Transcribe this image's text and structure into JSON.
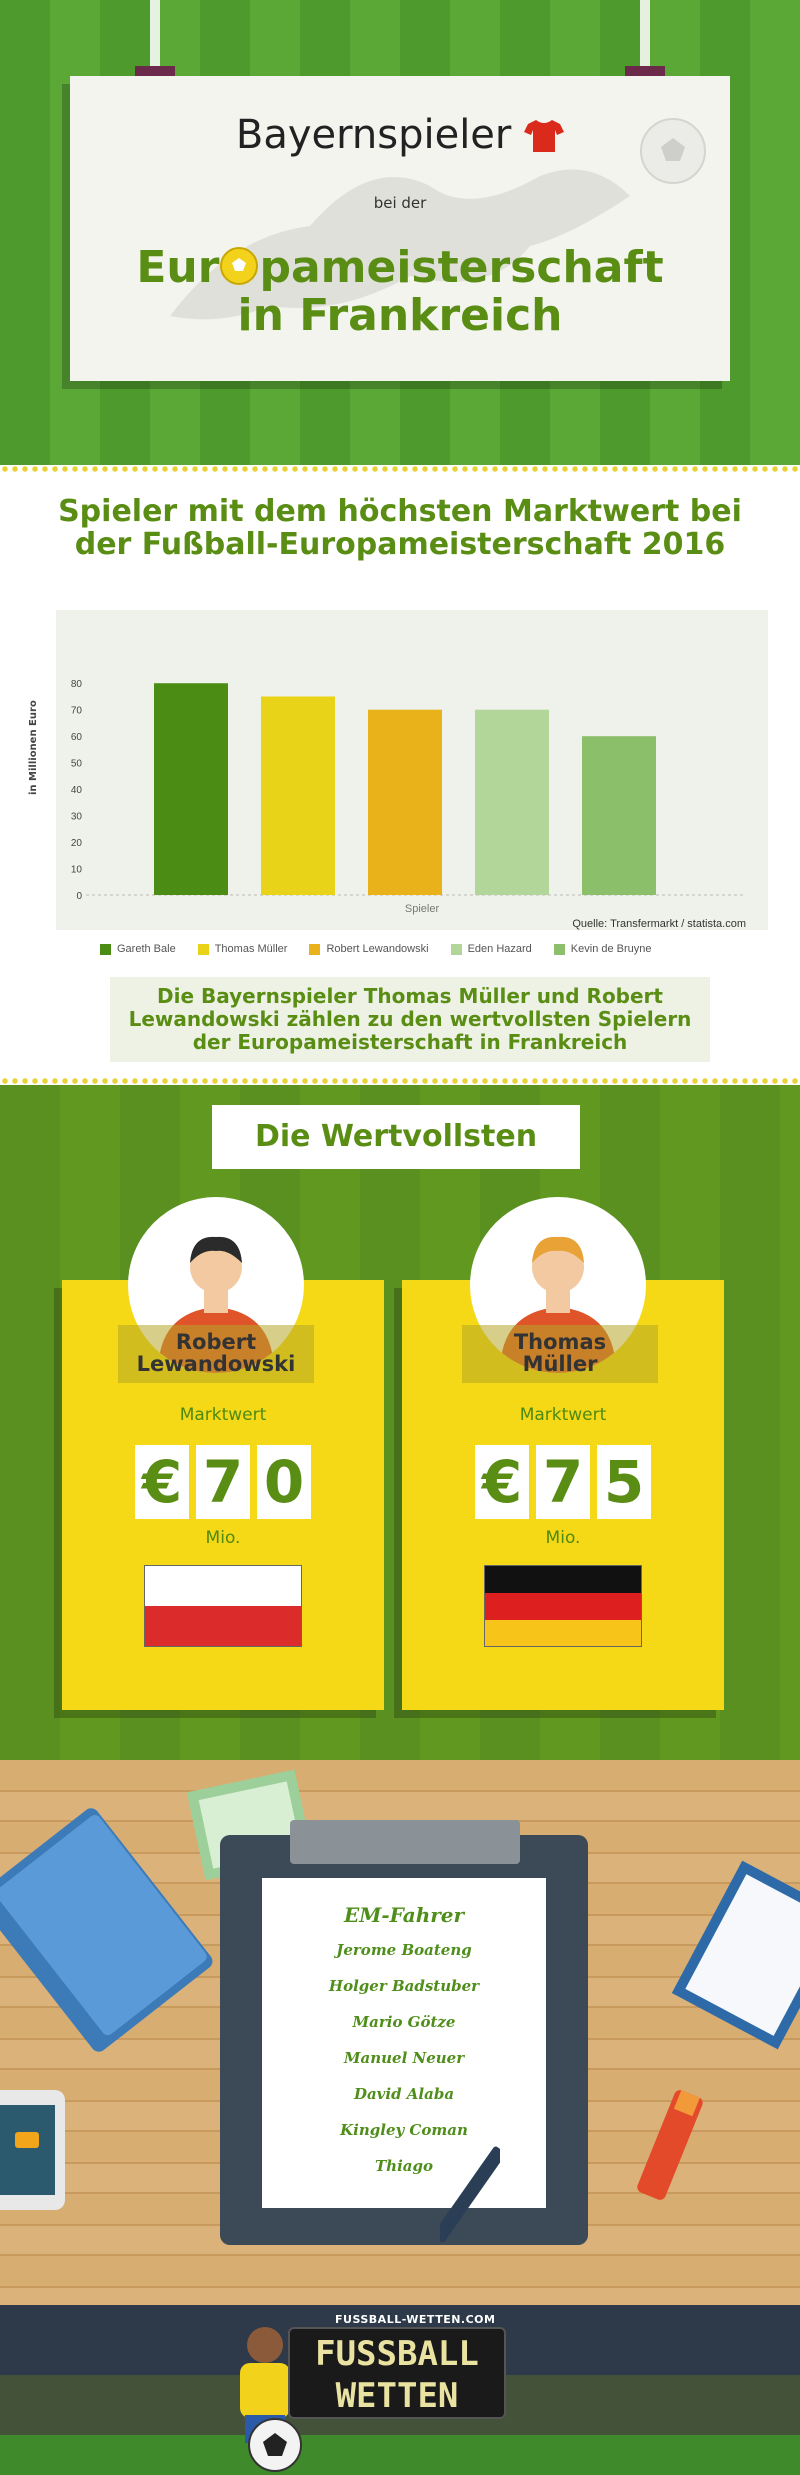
{
  "header": {
    "title_line1": "Bayernspieler",
    "title_line2": "bei der",
    "title_line3a": "Eur",
    "title_line3b": "pameisterschaft",
    "title_line4": "in Frankreich"
  },
  "chart_section": {
    "title": "Spieler mit dem höchsten Marktwert bei der Fußball-Europameisterschaft 2016",
    "note": "Die Bayernspieler Thomas Müller und Robert Lewandowski zählen zu den wertvollsten Spielern der Europameisterschaft in Frankreich"
  },
  "chart_data": {
    "type": "bar",
    "categories": [
      "Gareth Bale",
      "Thomas Müller",
      "Robert Lewandowski",
      "Eden Hazard",
      "Kevin de Bruyne"
    ],
    "values": [
      80,
      75,
      70,
      70,
      60
    ],
    "colors": [
      "#4a8c14",
      "#e8d318",
      "#eab21a",
      "#b2d69a",
      "#8cbf6a"
    ],
    "xlabel": "Spieler",
    "ylabel": "in Millionen Euro",
    "yticks": [
      0,
      10,
      20,
      30,
      40,
      50,
      60,
      70,
      80
    ],
    "ylim": [
      0,
      85
    ],
    "source": "Quelle: Transfermarkt / statista.com",
    "grid": false,
    "legend_position": "bottom"
  },
  "valuable": {
    "title": "Die Wertvollsten",
    "players": [
      {
        "name_line1": "Robert",
        "name_line2": "Lewandowski",
        "label": "Marktwert",
        "digits": [
          "€",
          "7",
          "0"
        ],
        "unit": "Mio.",
        "flag": "poland"
      },
      {
        "name_line1": "Thomas",
        "name_line2": "Müller",
        "label": "Marktwert",
        "digits": [
          "€",
          "7",
          "5"
        ],
        "unit": "Mio.",
        "flag": "germany"
      }
    ]
  },
  "em_list": {
    "title": "EM-Fahrer",
    "players": [
      "Jerome Boateng",
      "Holger Badstuber",
      "Mario Götze",
      "Manuel Neuer",
      "David Alaba",
      "Kingley Coman",
      "Thiago"
    ]
  },
  "footer": {
    "brand_small": "FUSSBALL-WETTEN.COM",
    "brand_big_line1": "FUSSBALL",
    "brand_big_line2": "WETTEN"
  }
}
